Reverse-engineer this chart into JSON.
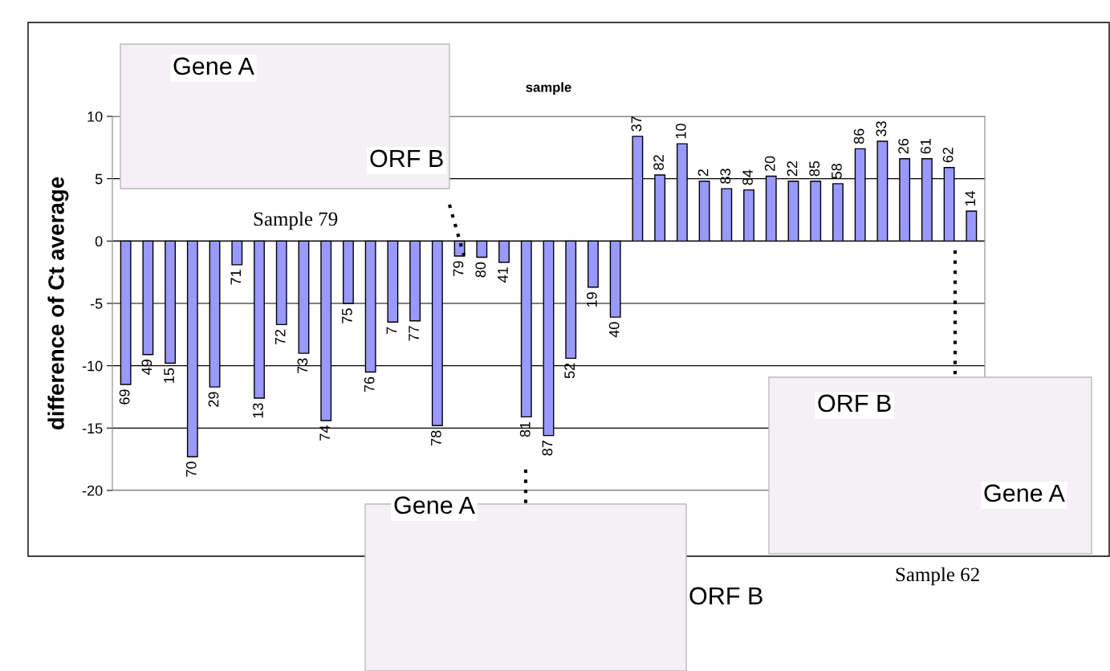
{
  "chart_data": {
    "type": "bar",
    "xlabel": "sample",
    "ylabel": "difference of Ct average",
    "categories": [
      "69",
      "49",
      "15",
      "70",
      "29",
      "71",
      "13",
      "72",
      "73",
      "74",
      "75",
      "76",
      "7",
      "77",
      "78",
      "79",
      "80",
      "41",
      "81",
      "87",
      "52",
      "19",
      "40",
      "37",
      "82",
      "10",
      "2",
      "83",
      "84",
      "20",
      "22",
      "85",
      "58",
      "86",
      "33",
      "26",
      "61",
      "62",
      "14"
    ],
    "values": [
      -11.5,
      -9.1,
      -9.8,
      -17.3,
      -11.7,
      -1.9,
      -12.6,
      -6.7,
      -9.0,
      -14.4,
      -5.0,
      -10.5,
      -6.5,
      -6.4,
      -14.8,
      -1.2,
      -1.3,
      -1.7,
      -14.1,
      -15.6,
      -9.4,
      -3.7,
      -6.1,
      8.4,
      5.3,
      7.8,
      4.8,
      4.2,
      4.1,
      5.2,
      4.8,
      4.8,
      4.6,
      7.4,
      8.0,
      6.6,
      6.6,
      5.9,
      2.4
    ],
    "color": "#9999ff",
    "ylim": [
      -20,
      10
    ],
    "yticks": [
      -20,
      -15,
      -10,
      -5,
      0,
      5,
      10
    ],
    "grid": "y",
    "tick_labels": "y",
    "annotations": [
      "Gene A",
      "ORF B",
      "Sample 79",
      "Gene A",
      "ORF B",
      "ORF B",
      "Gene A",
      "Sample 62"
    ]
  }
}
